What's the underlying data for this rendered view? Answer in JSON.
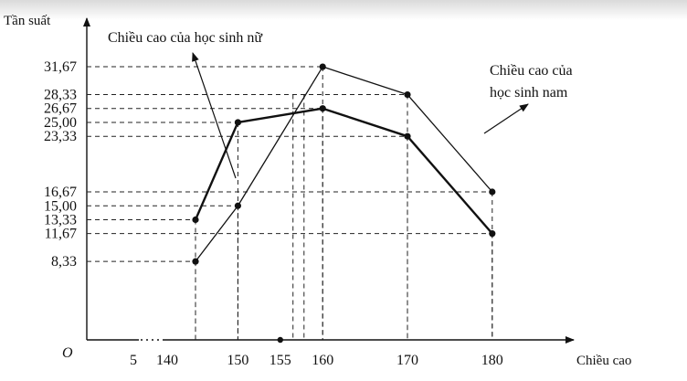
{
  "chart_data": {
    "type": "line",
    "y_axis_label": "Tần suất",
    "x_axis_label": "Chiều cao",
    "origin_label": "O",
    "x": [
      145,
      150,
      160,
      170,
      180
    ],
    "x_tick_labels": [
      "5",
      "140",
      "150",
      "155",
      "160",
      "170",
      "180"
    ],
    "y_tick_labels": [
      "8,33",
      "11,67",
      "13,33",
      "15,00",
      "16,67",
      "23,33",
      "25,00",
      "26,67",
      "28,33",
      "31,67"
    ],
    "series": [
      {
        "name": "Chiều cao của học sinh nữ",
        "values": [
          13.33,
          25.0,
          26.67,
          23.33,
          11.67
        ]
      },
      {
        "name": "Chiều cao của học sinh nam",
        "values": [
          8.33,
          15.0,
          31.67,
          28.33,
          16.67
        ]
      }
    ],
    "annotations": {
      "female_label": "Chiều cao của học sinh nữ",
      "male_label_line1": "Chiều cao của",
      "male_label_line2": "học sinh nam"
    },
    "grid": "dashed guide lines to axes"
  }
}
